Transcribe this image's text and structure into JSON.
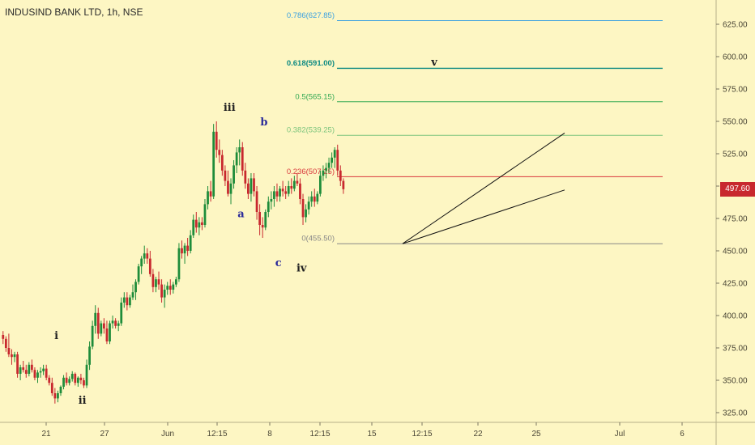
{
  "chart_data": {
    "type": "candlestick",
    "title": "INDUSIND BANK LTD, 1h, NSE",
    "ylim": [
      300,
      650
    ],
    "y_ticks": [
      325,
      350,
      375,
      400,
      425,
      450,
      475,
      500,
      525,
      550,
      575,
      600,
      625
    ],
    "y_tick_labels": [
      "325.00",
      "350.00",
      "375.00",
      "400.00",
      "425.00",
      "450.00",
      "475.00",
      "500.00",
      "525.00",
      "550.00",
      "575.00",
      "600.00",
      "625.00"
    ],
    "x_tick_labels": [
      "21",
      "27",
      "Jun",
      "12:15",
      "8",
      "12:15",
      "15",
      "12:15",
      "22",
      "25",
      "Jul",
      "6"
    ],
    "last_price": 497.6,
    "last_price_label": "497.60",
    "colors": {
      "up": "#1e8c3a",
      "down": "#c8282e",
      "background": "#fdf6c3"
    },
    "series": [
      {
        "values": [
          [
            385,
            388,
            378,
            382
          ],
          [
            382,
            384,
            372,
            375
          ],
          [
            375,
            386,
            368,
            370
          ],
          [
            370,
            374,
            362,
            368
          ],
          [
            368,
            372,
            364,
            370
          ],
          [
            370,
            372,
            352,
            355
          ],
          [
            355,
            362,
            350,
            360
          ],
          [
            360,
            365,
            356,
            358
          ],
          [
            358,
            362,
            352,
            355
          ],
          [
            355,
            364,
            353,
            362
          ],
          [
            362,
            366,
            356,
            358
          ],
          [
            358,
            360,
            350,
            352
          ],
          [
            352,
            358,
            348,
            356
          ],
          [
            356,
            360,
            352,
            357
          ],
          [
            357,
            362,
            354,
            359
          ],
          [
            359,
            362,
            350,
            352
          ],
          [
            352,
            354,
            346,
            348
          ],
          [
            348,
            352,
            338,
            340
          ],
          [
            340,
            344,
            332,
            336
          ],
          [
            336,
            342,
            333,
            340
          ],
          [
            340,
            346,
            338,
            345
          ],
          [
            345,
            354,
            343,
            352
          ],
          [
            352,
            356,
            346,
            348
          ],
          [
            348,
            353,
            346,
            351
          ],
          [
            351,
            357,
            349,
            355
          ],
          [
            355,
            356,
            346,
            348
          ],
          [
            348,
            353,
            345,
            352
          ],
          [
            352,
            355,
            347,
            350
          ],
          [
            350,
            352,
            344,
            346
          ],
          [
            346,
            366,
            344,
            362
          ],
          [
            362,
            380,
            358,
            376
          ],
          [
            376,
            396,
            374,
            392
          ],
          [
            392,
            408,
            386,
            402
          ],
          [
            402,
            406,
            382,
            386
          ],
          [
            386,
            396,
            384,
            394
          ],
          [
            394,
            398,
            386,
            390
          ],
          [
            390,
            396,
            378,
            380
          ],
          [
            380,
            396,
            378,
            394
          ],
          [
            394,
            400,
            390,
            396
          ],
          [
            396,
            398,
            390,
            392
          ],
          [
            392,
            396,
            388,
            394
          ],
          [
            394,
            414,
            392,
            410
          ],
          [
            410,
            418,
            406,
            414
          ],
          [
            414,
            418,
            404,
            408
          ],
          [
            408,
            416,
            406,
            414
          ],
          [
            414,
            424,
            412,
            418
          ],
          [
            418,
            428,
            412,
            426
          ],
          [
            426,
            440,
            424,
            438
          ],
          [
            438,
            446,
            432,
            444
          ],
          [
            444,
            454,
            440,
            448
          ],
          [
            448,
            452,
            440,
            444
          ],
          [
            444,
            450,
            430,
            432
          ],
          [
            432,
            436,
            418,
            422
          ],
          [
            422,
            430,
            418,
            428
          ],
          [
            428,
            434,
            420,
            424
          ],
          [
            424,
            428,
            410,
            414
          ],
          [
            414,
            424,
            406,
            420
          ],
          [
            420,
            426,
            416,
            423
          ],
          [
            423,
            428,
            416,
            420
          ],
          [
            420,
            426,
            417,
            424
          ],
          [
            424,
            430,
            422,
            428
          ],
          [
            428,
            456,
            426,
            452
          ],
          [
            452,
            458,
            444,
            448
          ],
          [
            448,
            456,
            440,
            454
          ],
          [
            454,
            460,
            446,
            450
          ],
          [
            450,
            466,
            448,
            462
          ],
          [
            462,
            478,
            460,
            474
          ],
          [
            474,
            480,
            464,
            468
          ],
          [
            468,
            476,
            462,
            472
          ],
          [
            472,
            476,
            466,
            470
          ],
          [
            470,
            490,
            468,
            486
          ],
          [
            486,
            500,
            482,
            496
          ],
          [
            496,
            504,
            488,
            492
          ],
          [
            492,
            548,
            490,
            542
          ],
          [
            542,
            550,
            522,
            528
          ],
          [
            528,
            536,
            518,
            524
          ],
          [
            524,
            528,
            508,
            512
          ],
          [
            512,
            516,
            500,
            504
          ],
          [
            504,
            512,
            492,
            494
          ],
          [
            494,
            506,
            486,
            502
          ],
          [
            502,
            520,
            498,
            516
          ],
          [
            516,
            530,
            510,
            526
          ],
          [
            526,
            536,
            516,
            530
          ],
          [
            530,
            534,
            508,
            512
          ],
          [
            512,
            518,
            498,
            502
          ],
          [
            502,
            506,
            490,
            494
          ],
          [
            494,
            510,
            488,
            506
          ],
          [
            506,
            510,
            492,
            496
          ],
          [
            496,
            500,
            474,
            480
          ],
          [
            480,
            486,
            462,
            470
          ],
          [
            470,
            476,
            460,
            468
          ],
          [
            468,
            482,
            466,
            480
          ],
          [
            480,
            492,
            476,
            488
          ],
          [
            488,
            496,
            482,
            490
          ],
          [
            490,
            500,
            484,
            496
          ],
          [
            496,
            502,
            488,
            492
          ],
          [
            492,
            500,
            488,
            498
          ],
          [
            498,
            504,
            492,
            496
          ],
          [
            496,
            500,
            490,
            494
          ],
          [
            494,
            504,
            492,
            500
          ],
          [
            500,
            506,
            494,
            498
          ],
          [
            498,
            508,
            496,
            504
          ],
          [
            504,
            510,
            500,
            502
          ],
          [
            502,
            506,
            486,
            490
          ],
          [
            490,
            494,
            470,
            476
          ],
          [
            476,
            486,
            472,
            482
          ],
          [
            482,
            492,
            478,
            488
          ],
          [
            488,
            496,
            484,
            492
          ],
          [
            492,
            498,
            484,
            488
          ],
          [
            488,
            496,
            486,
            494
          ],
          [
            494,
            512,
            492,
            508
          ],
          [
            508,
            516,
            504,
            512
          ],
          [
            512,
            518,
            506,
            514
          ],
          [
            514,
            522,
            510,
            518
          ],
          [
            518,
            526,
            514,
            522
          ],
          [
            522,
            530,
            514,
            528
          ],
          [
            528,
            532,
            508,
            512
          ],
          [
            512,
            516,
            500,
            504
          ],
          [
            504,
            506,
            494,
            497.6
          ]
        ]
      }
    ],
    "fib_levels": [
      {
        "label": "0.786(627.85)",
        "value": 627.85,
        "color": "#3aa0e0"
      },
      {
        "label": "0.618(591.00)",
        "value": 591.0,
        "color": "#0e8a82"
      },
      {
        "label": "0.5(565.15)",
        "value": 565.15,
        "color": "#32a852"
      },
      {
        "label": "0.382(539.25)",
        "value": 539.25,
        "color": "#7cc47c"
      },
      {
        "label": "0.236(507.25)",
        "value": 507.25,
        "color": "#d9383c"
      },
      {
        "label": "0(455.50)",
        "value": 455.5,
        "color": "#888888"
      }
    ],
    "channel_lines": [
      {
        "from": [
          97,
          455
        ],
        "to": [
          117,
          541
        ]
      },
      {
        "from": [
          97,
          455
        ],
        "to": [
          117,
          497
        ]
      }
    ],
    "wave_labels": [
      {
        "text": "i",
        "bar": 19,
        "price": 382,
        "color": "#222222"
      },
      {
        "text": "ii",
        "bar": 28,
        "price": 332,
        "color": "#222222"
      },
      {
        "text": "iii",
        "bar": 79,
        "price": 558,
        "color": "#222222"
      },
      {
        "text": "a",
        "bar": 83,
        "price": 476,
        "color": "#2a2a9a"
      },
      {
        "text": "b",
        "bar": 91,
        "price": 547,
        "color": "#2a2a9a"
      },
      {
        "text": "c",
        "bar": 96,
        "price": 438,
        "color": "#2a2a9a"
      },
      {
        "text": "iv",
        "bar": 104,
        "price": 434,
        "color": "#222222"
      },
      {
        "text": "v",
        "bar": 150,
        "price": 593,
        "color": "#222222"
      }
    ]
  }
}
